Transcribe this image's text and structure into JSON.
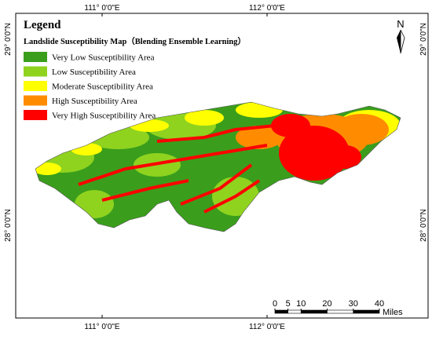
{
  "legend": {
    "title": "Legend",
    "subtitle": "Landslide Susceptibility Map（Blending Ensemble Learning）",
    "items": [
      {
        "label": "Very Low Susceptibility Area",
        "color": "#3a9e1c"
      },
      {
        "label": "Low Susceptibility Area",
        "color": "#8fd31f"
      },
      {
        "label": "Moderate Susceptibility Area",
        "color": "#ffff00"
      },
      {
        "label": "High Susceptibility Area",
        "color": "#ff8c00"
      },
      {
        "label": "Very High Susceptibility Area",
        "color": "#ff0000"
      }
    ]
  },
  "graticule": {
    "top": [
      "111° 0'0\"E",
      "112° 0'0\"E"
    ],
    "bottom": [
      "111° 0'0\"E",
      "112° 0'0\"E"
    ],
    "left": [
      "29° 0'0\"N",
      "28° 0'0\"N"
    ],
    "right": [
      "29° 0'0\"N",
      "28° 0'0\"N"
    ]
  },
  "north_arrow": {
    "label": "N"
  },
  "scale_bar": {
    "ticks": [
      0,
      5,
      10,
      20,
      30,
      40
    ],
    "unit": "Miles"
  }
}
